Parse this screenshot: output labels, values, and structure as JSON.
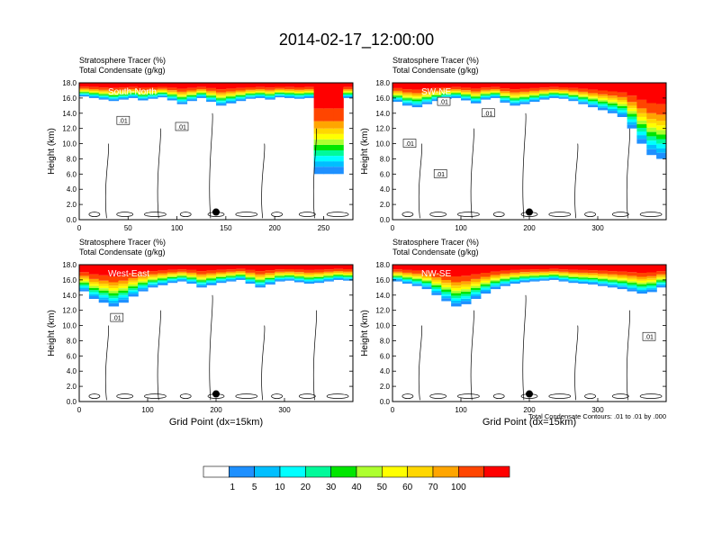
{
  "page_title": "2014-02-17_12:00:00",
  "chart_data": [
    {
      "type": "heatmap",
      "line1": "Stratosphere Tracer   (%)",
      "line2": "Total Condensate   (g/kg)",
      "title": "South-North",
      "ylabel": "Height (km)",
      "xlabel": "",
      "xticks": [
        "0",
        "50",
        "100",
        "150",
        "200",
        "250"
      ],
      "xtick_values": [
        0,
        50,
        100,
        150,
        200,
        250
      ],
      "xlim": [
        0,
        280
      ],
      "yticks": [
        "0.0",
        "2.0",
        "4.0",
        "6.0",
        "8.0",
        "10.0",
        "12.0",
        "14.0",
        "16.0",
        "18.0"
      ],
      "ylim": [
        0,
        18
      ],
      "marker": {
        "x": 140,
        "y": 1.0
      },
      "contour_labels": [
        {
          "text": ".01",
          "x": 45,
          "y": 13.0
        },
        {
          "text": ".01",
          "x": 105,
          "y": 12.2
        }
      ],
      "tracer_top": [
        16.2,
        16.0,
        15.8,
        15.6,
        15.8,
        16.0,
        15.7,
        15.9,
        16.1,
        15.7,
        15.2,
        15.6,
        16.0,
        15.5,
        15.0,
        15.3,
        15.6,
        15.9,
        16.0,
        15.8,
        16.1,
        16.0,
        15.9,
        16.0,
        6.0,
        6.0,
        6.0,
        16.0
      ]
    },
    {
      "type": "heatmap",
      "line1": "Stratosphere Tracer   (%)",
      "line2": "Total Condensate   (g/kg)",
      "title": "SW-NE",
      "ylabel": "Height (km)",
      "xlabel": "",
      "xticks": [
        "0",
        "100",
        "200",
        "300"
      ],
      "xtick_values": [
        0,
        100,
        200,
        300
      ],
      "xlim": [
        0,
        400
      ],
      "yticks": [
        "0.0",
        "2.0",
        "4.0",
        "6.0",
        "8.0",
        "10.0",
        "12.0",
        "14.0",
        "16.0",
        "18.0"
      ],
      "ylim": [
        0,
        18
      ],
      "marker": {
        "x": 200,
        "y": 1.0
      },
      "contour_labels": [
        {
          "text": ".01",
          "x": 25,
          "y": 10.0
        },
        {
          "text": ".01",
          "x": 75,
          "y": 15.5
        },
        {
          "text": ".01",
          "x": 140,
          "y": 14.0
        },
        {
          "text": ".01",
          "x": 70,
          "y": 6.0
        }
      ],
      "tracer_top": [
        15.5,
        15.0,
        14.8,
        15.2,
        15.6,
        15.9,
        16.0,
        15.7,
        15.3,
        15.8,
        16.0,
        15.4,
        15.0,
        15.2,
        15.5,
        15.8,
        16.0,
        15.9,
        15.6,
        15.2,
        14.8,
        14.4,
        14.0,
        13.5,
        12.0,
        10.0,
        8.5,
        8.0
      ]
    },
    {
      "type": "heatmap",
      "line1": "Stratosphere Tracer   (%)",
      "line2": "Total Condensate   (g/kg)",
      "title": "West-East",
      "ylabel": "Height (km)",
      "xlabel": "Grid Point (dx=15km)",
      "xticks": [
        "0",
        "100",
        "200",
        "300"
      ],
      "xtick_values": [
        0,
        100,
        200,
        300
      ],
      "xlim": [
        0,
        400
      ],
      "yticks": [
        "0.0",
        "2.0",
        "4.0",
        "6.0",
        "8.0",
        "10.0",
        "12.0",
        "14.0",
        "16.0",
        "18.0"
      ],
      "ylim": [
        0,
        18
      ],
      "marker": {
        "x": 200,
        "y": 1.0
      },
      "contour_labels": [
        {
          "text": ".01",
          "x": 55,
          "y": 11.0
        }
      ],
      "tracer_top": [
        14.5,
        13.5,
        13.0,
        12.5,
        13.0,
        13.8,
        14.5,
        15.0,
        15.3,
        15.6,
        15.8,
        15.5,
        15.0,
        15.3,
        15.6,
        15.8,
        16.0,
        15.5,
        15.0,
        15.4,
        15.8,
        15.9,
        15.7,
        15.5,
        15.6,
        15.8,
        16.0,
        15.9
      ]
    },
    {
      "type": "heatmap",
      "line1": "Stratosphere Tracer   (%)",
      "line2": "Total Condensate   (g/kg)",
      "title": "NW-SE",
      "ylabel": "Height (km)",
      "xlabel": "Grid Point (dx=15km)",
      "xticks": [
        "0",
        "100",
        "200",
        "300"
      ],
      "xtick_values": [
        0,
        100,
        200,
        300
      ],
      "xlim": [
        0,
        400
      ],
      "yticks": [
        "0.0",
        "2.0",
        "4.0",
        "6.0",
        "8.0",
        "10.0",
        "12.0",
        "14.0",
        "16.0",
        "18.0"
      ],
      "ylim": [
        0,
        18
      ],
      "marker": {
        "x": 200,
        "y": 1.0
      },
      "contour_labels": [
        {
          "text": ".01",
          "x": 375,
          "y": 8.5
        }
      ],
      "footnote": "Total Condensate Contours: .01 to .01 by .000",
      "tracer_top": [
        15.8,
        15.5,
        15.2,
        14.8,
        14.0,
        13.2,
        12.5,
        12.8,
        13.5,
        14.2,
        14.8,
        15.2,
        15.5,
        15.7,
        15.8,
        15.9,
        16.0,
        15.8,
        15.6,
        15.5,
        15.4,
        15.2,
        15.0,
        14.8,
        14.5,
        14.2,
        14.4,
        15.0
      ]
    }
  ],
  "colorbar": {
    "colors": [
      "#ffffff",
      "#1e90ff",
      "#00bfff",
      "#00ffff",
      "#00fa9a",
      "#00e600",
      "#adff2f",
      "#ffff00",
      "#ffd700",
      "#ffa500",
      "#ff4500",
      "#ff0000"
    ],
    "labels": [
      "1",
      "5",
      "10",
      "20",
      "30",
      "40",
      "50",
      "60",
      "70",
      "100"
    ]
  }
}
